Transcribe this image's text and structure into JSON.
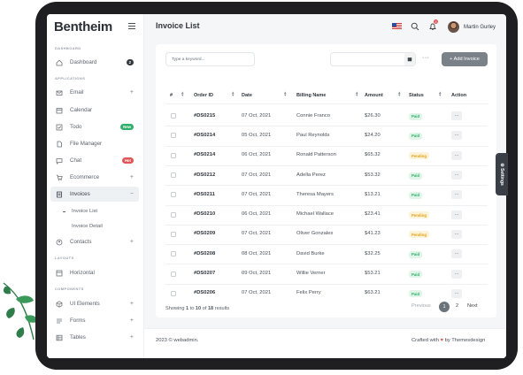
{
  "app": {
    "brand": "Bentheim"
  },
  "sidebar": {
    "sections": {
      "dashboard": "DASHBOARD",
      "applications": "APPLICATIONS",
      "layouts": "LAYOUTS",
      "components": "COMPONENTS"
    },
    "items": {
      "dashboard": {
        "label": "Dashboard",
        "badge": "2"
      },
      "email": {
        "label": "Email"
      },
      "calendar": {
        "label": "Calendar"
      },
      "todo": {
        "label": "Todo",
        "badge": "New"
      },
      "file_manager": {
        "label": "File Manager"
      },
      "chat": {
        "label": "Chat",
        "badge": "Hot"
      },
      "ecommerce": {
        "label": "Ecommerce"
      },
      "invoices": {
        "label": "Invoices"
      },
      "invoice_list": {
        "label": "Invoice List"
      },
      "invoice_detail": {
        "label": "Invoice Detail"
      },
      "contacts": {
        "label": "Contacts"
      },
      "horizontal": {
        "label": "Horizontal"
      },
      "ui_elements": {
        "label": "UI Elements"
      },
      "forms": {
        "label": "Forms"
      },
      "tables": {
        "label": "Tables"
      }
    },
    "colors": {
      "badge_dark": "#343a40",
      "badge_new": "#2fae6a",
      "badge_hot": "#e25555"
    }
  },
  "header": {
    "title": "Invoice List",
    "user_name": "Martin Gurley",
    "notification_count": "3"
  },
  "toolbar": {
    "search_placeholder": "Type a keyword...",
    "add_label": "+ Add Invoice",
    "more": "···"
  },
  "table": {
    "headers": {
      "num": "#",
      "order_id": "Order ID",
      "date": "Date",
      "billing_name": "Billing Name",
      "amount": "Amount",
      "status": "Status",
      "action": "Action"
    },
    "rows": [
      {
        "id": "#DS0215",
        "date": "07 Oct, 2021",
        "name": "Connie Franco",
        "amount": "$26.30",
        "status": "Paid"
      },
      {
        "id": "#DS0214",
        "date": "05 Oct, 2021",
        "name": "Paul Reynolds",
        "amount": "$24.20",
        "status": "Paid"
      },
      {
        "id": "#DS0214",
        "date": "06 Oct, 2021",
        "name": "Ronald Patterson",
        "amount": "$65.32",
        "status": "Pending"
      },
      {
        "id": "#DS0212",
        "date": "07 Oct, 2021",
        "name": "Adella Perez",
        "amount": "$53.32",
        "status": "Paid"
      },
      {
        "id": "#DS0211",
        "date": "07 Oct, 2021",
        "name": "Theresa Mayers",
        "amount": "$13.21",
        "status": "Paid"
      },
      {
        "id": "#DS0210",
        "date": "06 Oct, 2021",
        "name": "Michael Wallace",
        "amount": "$23.41",
        "status": "Pending"
      },
      {
        "id": "#DS0209",
        "date": "07 Oct, 2021",
        "name": "Oliver Gonzales",
        "amount": "$41.23",
        "status": "Pending"
      },
      {
        "id": "#DS0208",
        "date": "08 Oct, 2021",
        "name": "David Burke",
        "amount": "$32.25",
        "status": "Paid"
      },
      {
        "id": "#DS0207",
        "date": "09 Oct, 2021",
        "name": "Willie Verner",
        "amount": "$53.21",
        "status": "Paid"
      },
      {
        "id": "#DS0206",
        "date": "07 Oct, 2021",
        "name": "Felix Perry",
        "amount": "$63.21",
        "status": "Paid"
      }
    ],
    "action_label": "···"
  },
  "pagination": {
    "showing_prefix": "Showing ",
    "from": "1",
    "to_prefix": " to ",
    "to": "10",
    "of_prefix": " of ",
    "total": "18",
    "suffix": " results",
    "previous": "Previous",
    "page1": "1",
    "page2": "2",
    "next": "Next"
  },
  "footer": {
    "copyright": "2023 © webadmin.",
    "crafted_prefix": "Crafted with",
    "crafted_suffix": "by Themesdesign"
  },
  "settings_tab": "Settings"
}
